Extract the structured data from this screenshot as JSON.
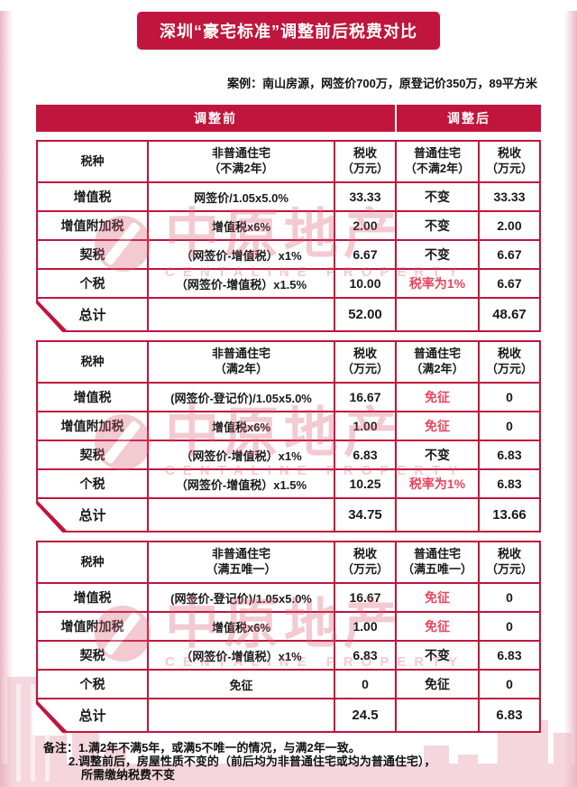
{
  "colors": {
    "primary": "#c0153c",
    "accent_text": "#e8465f",
    "watermark": "#da5e74",
    "pink_light": "#f3ccd5"
  },
  "title": "深圳“豪宅标准”调整前后税费对比",
  "case_note": "案例：南山房源，网签价700万，原登记价350万，89平方米",
  "adjust_bar": {
    "before": "调整前",
    "after": "调整后"
  },
  "tables": [
    {
      "headers": [
        "税种",
        "非普通住宅\n（不满2年）",
        "税收\n（万元）",
        "普通住宅\n（不满2年）",
        "税收\n（万元）"
      ],
      "rows": [
        {
          "cells": [
            {
              "t": "增值税"
            },
            {
              "t": "网签价/1.05x5.0%"
            },
            {
              "t": "33.33"
            },
            {
              "t": "不变"
            },
            {
              "t": "33.33"
            }
          ]
        },
        {
          "cells": [
            {
              "t": "增值附加税"
            },
            {
              "t": "增值税x6%"
            },
            {
              "t": "2.00"
            },
            {
              "t": "不变"
            },
            {
              "t": "2.00"
            }
          ]
        },
        {
          "cells": [
            {
              "t": "契税"
            },
            {
              "t": "（网签价-增值税）x1%"
            },
            {
              "t": "6.67"
            },
            {
              "t": "不变"
            },
            {
              "t": "6.67"
            }
          ]
        },
        {
          "cells": [
            {
              "t": "个税"
            },
            {
              "t": "（网签价-增值税）x1.5%"
            },
            {
              "t": "10.00"
            },
            {
              "t": "税率为1%",
              "red": true
            },
            {
              "t": "6.67"
            }
          ]
        }
      ],
      "total": {
        "cells": [
          {
            "t": "总计"
          },
          {
            "t": ""
          },
          {
            "t": "52.00"
          },
          {
            "t": ""
          },
          {
            "t": "48.67"
          }
        ]
      }
    },
    {
      "headers": [
        "税种",
        "非普通住宅\n（满2年）",
        "税收\n（万元）",
        "普通住宅\n（满2年）",
        "税收\n（万元）"
      ],
      "rows": [
        {
          "cells": [
            {
              "t": "增值税"
            },
            {
              "t": "(网签价-登记价)/1.05x5.0%"
            },
            {
              "t": "16.67"
            },
            {
              "t": "免征",
              "red": true
            },
            {
              "t": "0"
            }
          ]
        },
        {
          "cells": [
            {
              "t": "增值附加税"
            },
            {
              "t": "增值税x6%"
            },
            {
              "t": "1.00"
            },
            {
              "t": "免征",
              "red": true
            },
            {
              "t": "0"
            }
          ]
        },
        {
          "cells": [
            {
              "t": "契税"
            },
            {
              "t": "（网签价-增值税）x1%"
            },
            {
              "t": "6.83"
            },
            {
              "t": "不变"
            },
            {
              "t": "6.83"
            }
          ]
        },
        {
          "cells": [
            {
              "t": "个税"
            },
            {
              "t": "（网签价-增值税）x1.5%"
            },
            {
              "t": "10.25"
            },
            {
              "t": "税率为1%",
              "red": true
            },
            {
              "t": "6.83"
            }
          ]
        }
      ],
      "total": {
        "cells": [
          {
            "t": "总计"
          },
          {
            "t": ""
          },
          {
            "t": "34.75"
          },
          {
            "t": ""
          },
          {
            "t": "13.66"
          }
        ]
      }
    },
    {
      "headers": [
        "税种",
        "非普通住宅\n（满五唯一）",
        "税收\n（万元）",
        "普通住宅\n（满五唯一）",
        "税收\n（万元）"
      ],
      "rows": [
        {
          "cells": [
            {
              "t": "增值税"
            },
            {
              "t": "(网签价-登记价)/1.05x5.0%"
            },
            {
              "t": "16.67"
            },
            {
              "t": "免征",
              "red": true
            },
            {
              "t": "0"
            }
          ]
        },
        {
          "cells": [
            {
              "t": "增值附加税"
            },
            {
              "t": "增值税x6%"
            },
            {
              "t": "1.00"
            },
            {
              "t": "免征",
              "red": true
            },
            {
              "t": "0"
            }
          ]
        },
        {
          "cells": [
            {
              "t": "契税"
            },
            {
              "t": "（网签价-增值税）x1%"
            },
            {
              "t": "6.83"
            },
            {
              "t": "不变"
            },
            {
              "t": "6.83"
            }
          ]
        },
        {
          "cells": [
            {
              "t": "个税"
            },
            {
              "t": "免征"
            },
            {
              "t": "0"
            },
            {
              "t": "免征"
            },
            {
              "t": "0"
            }
          ]
        }
      ],
      "total": {
        "cells": [
          {
            "t": "总计"
          },
          {
            "t": ""
          },
          {
            "t": "24.5"
          },
          {
            "t": ""
          },
          {
            "t": "6.83"
          }
        ]
      }
    }
  ],
  "notes": [
    "备注：1.满2年不满5年，或满5不唯一的情况，与满2年一致。",
    "2.调整前后，房屋性质不变的（前后均为非普通住宅或均为普通住宅），",
    "所需缴纳税费不变"
  ],
  "watermark": {
    "cn": "中原地产",
    "en": "CENTALINE PROPERTY"
  }
}
